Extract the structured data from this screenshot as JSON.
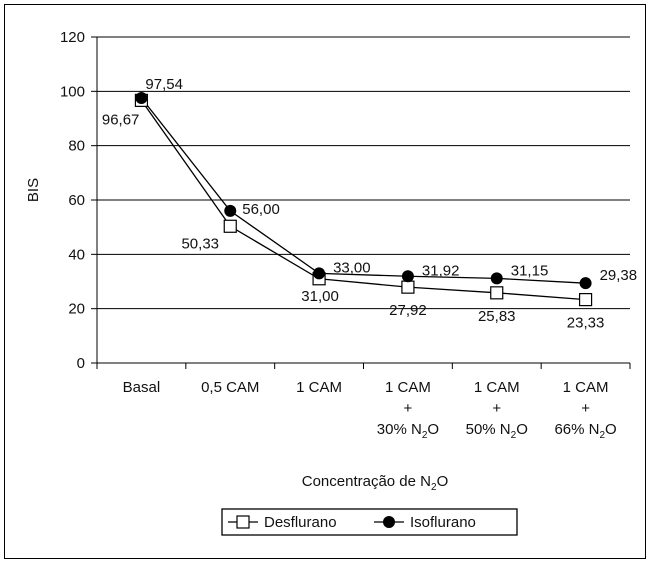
{
  "chart_data": {
    "type": "line",
    "title": "",
    "ylabel": "BIS",
    "xlabel": {
      "text": "Concentração de N",
      "sub": "2",
      "suffix": "O"
    },
    "ylim": [
      0,
      120
    ],
    "yticks": [
      0,
      20,
      40,
      60,
      80,
      100,
      120
    ],
    "grid": true,
    "categories": [
      {
        "lines": [
          "Basal"
        ]
      },
      {
        "lines": [
          "0,5 CAM"
        ]
      },
      {
        "lines": [
          "1 CAM"
        ]
      },
      {
        "lines": [
          "1 CAM",
          "+",
          "30% N|2|O"
        ]
      },
      {
        "lines": [
          "1 CAM",
          "+",
          "50% N|2|O"
        ]
      },
      {
        "lines": [
          "1 CAM",
          "+",
          "66% N|2|O"
        ]
      }
    ],
    "series": [
      {
        "name": "Desflurano",
        "marker": "square-open",
        "color": "#000000",
        "values": [
          96.67,
          50.33,
          31.0,
          27.92,
          25.83,
          23.33
        ],
        "labels": [
          "96,67",
          "50,33",
          "31,00",
          "27,92",
          "25,83",
          "23,33"
        ]
      },
      {
        "name": "Isoflurano",
        "marker": "circle-filled",
        "color": "#000000",
        "values": [
          97.54,
          56.0,
          33.0,
          31.92,
          31.15,
          29.38
        ],
        "labels": [
          "97,54",
          "56,00",
          "33,00",
          "31,92",
          "31,15",
          "29,38"
        ]
      }
    ],
    "legend": "bottom-center"
  }
}
